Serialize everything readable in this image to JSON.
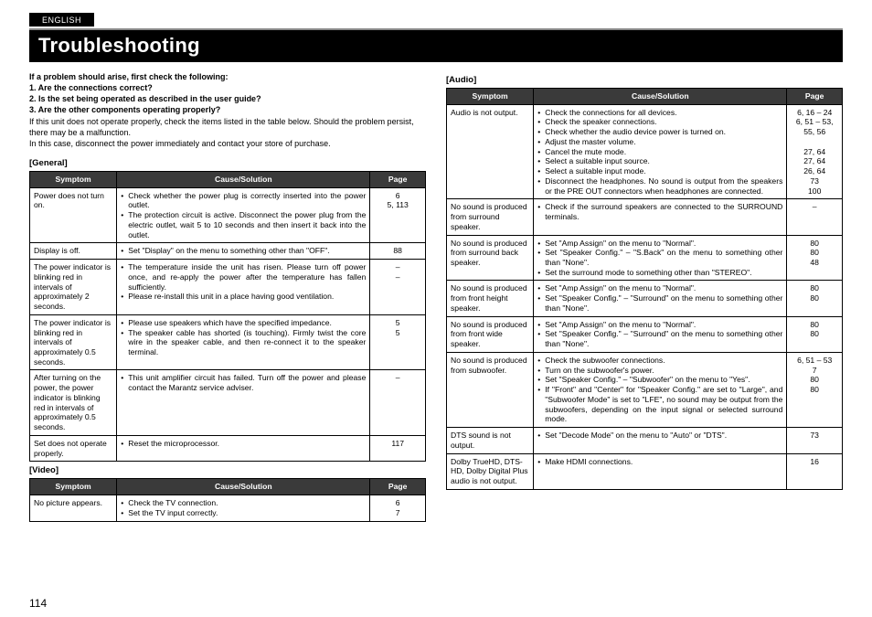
{
  "lang_tab": "ENGLISH",
  "title": "Troubleshooting",
  "intro": {
    "bold": [
      "If a problem should arise, first check the following:",
      "1. Are the connections correct?",
      "2. Is the set being operated as described in the user guide?",
      "3. Are the other components operating properly?"
    ],
    "plain": [
      "If this unit does not operate properly, check the items listed in the table below. Should the problem persist, there may be a malfunction.",
      "In this case, disconnect the power immediately and contact your store of purchase."
    ]
  },
  "headers": {
    "symptom": "Symptom",
    "cause": "Cause/Solution",
    "page": "Page"
  },
  "general": {
    "label": "[General]",
    "rows": [
      {
        "symptom": "Power does not turn on.",
        "causes": [
          "Check whether the power plug is correctly inserted into the power outlet.",
          "The protection circuit is active. Disconnect the power plug from the electric outlet, wait 5 to 10 seconds and then insert it back into the outlet."
        ],
        "pages": [
          "6",
          "5, 113"
        ]
      },
      {
        "symptom": "Display is off.",
        "causes": [
          "Set \"Display\" on the menu to something other than \"OFF\"."
        ],
        "pages": [
          "88"
        ]
      },
      {
        "symptom": "The power indicator is blinking red in intervals of approximately 2 seconds.",
        "causes": [
          "The temperature inside the unit has risen. Please turn off power once, and re-apply the power after the temperature has fallen sufficiently.",
          "Please re-install this unit in a place having good ventilation."
        ],
        "pages": [
          "–",
          "–"
        ]
      },
      {
        "symptom": "The power indicator is blinking red in intervals of approximately 0.5 seconds.",
        "causes": [
          "Please use speakers which have the specified impedance.",
          "The speaker cable has shorted (is touching). Firmly twist the core wire in the speaker cable, and then re-connect it to the speaker terminal."
        ],
        "pages": [
          "5",
          "5"
        ]
      },
      {
        "symptom": "After turning on the power, the power indicator is blinking red in intervals of approximately 0.5 seconds.",
        "causes": [
          "This unit amplifier circuit has failed. Turn off the power and please contact the Marantz service adviser."
        ],
        "pages": [
          "–"
        ]
      },
      {
        "symptom": "Set does not operate properly.",
        "causes": [
          "Reset the microprocessor."
        ],
        "pages": [
          "117"
        ]
      }
    ]
  },
  "video": {
    "label": "[Video]",
    "rows": [
      {
        "symptom": "No picture appears.",
        "causes": [
          "Check the TV connection.",
          "Set the TV input correctly."
        ],
        "pages": [
          "6",
          "7"
        ]
      }
    ]
  },
  "audio": {
    "label": "[Audio]",
    "rows": [
      {
        "symptom": "Audio is not output.",
        "causes": [
          "Check the connections for all devices.",
          "Check the speaker connections.",
          "Check whether the audio device power is turned on.",
          "Adjust the master volume.",
          "Cancel the mute mode.",
          "Select a suitable input source.",
          "Select a suitable input mode.",
          "Disconnect the headphones. No sound is output from the speakers or the PRE OUT connectors when headphones are connected."
        ],
        "pages": [
          "6, 16 – 24",
          "6, 51 – 53, 55, 56",
          "",
          "27, 64",
          "27, 64",
          "26, 64",
          "73",
          "100"
        ]
      },
      {
        "symptom": "No sound is produced from surround speaker.",
        "causes": [
          "Check if the surround speakers are connected to the SURROUND terminals."
        ],
        "pages": [
          "–"
        ]
      },
      {
        "symptom": "No sound is produced from surround back speaker.",
        "causes": [
          "Set \"Amp Assign\" on the menu to \"Normal\".",
          "Set \"Speaker Config.\" – \"S.Back\" on the menu to something other than \"None\".",
          "Set the surround mode to something other than \"STEREO\"."
        ],
        "pages": [
          "80",
          "80",
          "48"
        ]
      },
      {
        "symptom": "No sound is produced from front height speaker.",
        "causes": [
          "Set \"Amp Assign\" on the menu to \"Normal\".",
          "Set \"Speaker Config.\" – \"Surround\" on the menu to something other than \"None\"."
        ],
        "pages": [
          "80",
          "80"
        ]
      },
      {
        "symptom": "No sound is produced from front wide speaker.",
        "causes": [
          "Set \"Amp Assign\" on the menu to \"Normal\".",
          "Set \"Speaker Config.\" – \"Surround\" on the menu to something other than \"None\"."
        ],
        "pages": [
          "80",
          "80"
        ]
      },
      {
        "symptom": "No sound is produced from subwoofer.",
        "causes": [
          "Check the subwoofer connections.",
          "Turn on the subwoofer's power.",
          "Set \"Speaker Config.\" – \"Subwoofer\" on the menu to \"Yes\".",
          "If \"Front\" and \"Center\" for \"Speaker Config.\" are set to \"Large\", and \"Subwoofer Mode\" is set to \"LFE\", no sound may be output from the subwoofers, depending on the input signal or selected surround mode."
        ],
        "pages": [
          "6, 51 – 53",
          "7",
          "80",
          "80"
        ]
      },
      {
        "symptom": "DTS sound is not output.",
        "causes": [
          "Set \"Decode Mode\" on the menu to \"Auto\" or \"DTS\"."
        ],
        "pages": [
          "73"
        ]
      },
      {
        "symptom": "Dolby TrueHD, DTS-HD, Dolby Digital Plus audio is not output.",
        "causes": [
          "Make HDMI connections."
        ],
        "pages": [
          "16"
        ]
      }
    ]
  },
  "page_number": "114"
}
